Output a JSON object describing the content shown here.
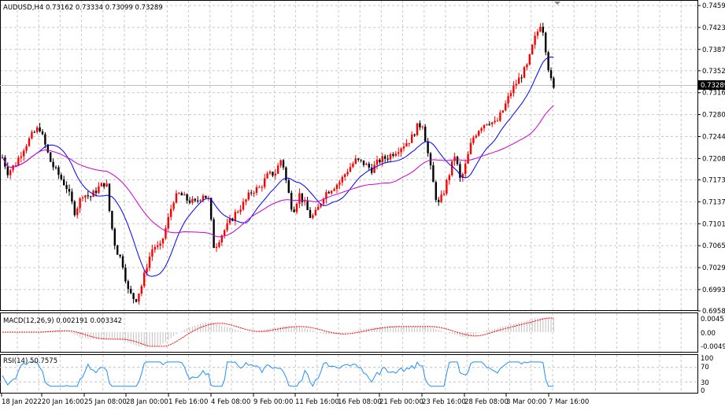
{
  "main": {
    "title": "AUDUSD,H4",
    "ohlc": "0.73162 0.73334 0.73099 0.73289",
    "price_labels": [
      "0.74590",
      "0.74230",
      "0.73870",
      "0.73520",
      "0.73160",
      "0.72800",
      "0.72440",
      "0.72080",
      "0.71730",
      "0.71370",
      "0.71010",
      "0.70650",
      "0.70290",
      "0.69930",
      "0.69580"
    ],
    "current_price": "0.73289",
    "ylim": [
      0.6958,
      0.7459
    ]
  },
  "macd": {
    "title": "MACD(12,26,9) 0.002191 0.003342",
    "labels": [
      "0.004511",
      "0.00",
      "-0.00495"
    ]
  },
  "rsi": {
    "title": "RSI(14) 50.7575",
    "labels": [
      "100",
      "70",
      "30",
      "0"
    ]
  },
  "time_axis": [
    "18 Jan 2022",
    "20 Jan 16:00",
    "25 Jan 08:00",
    "28 Jan 00:00",
    "1 Feb 16:00",
    "4 Feb 08:00",
    "9 Feb 00:00",
    "11 Feb 16:00",
    "16 Feb 08:00",
    "21 Feb 00:00",
    "23 Feb 16:00",
    "28 Feb 08:00",
    "3 Mar 00:00",
    "7 Mar 16:00"
  ],
  "colors": {
    "bull": "#ff0000",
    "bear": "#000000",
    "ma_fast": "#0000ff",
    "ma_slow": "#cc00cc",
    "grid": "#c8c8c8",
    "rsi_line": "#1e90ff",
    "macd_signal": "#ff0000",
    "macd_hist": "#c0c0c0"
  }
}
